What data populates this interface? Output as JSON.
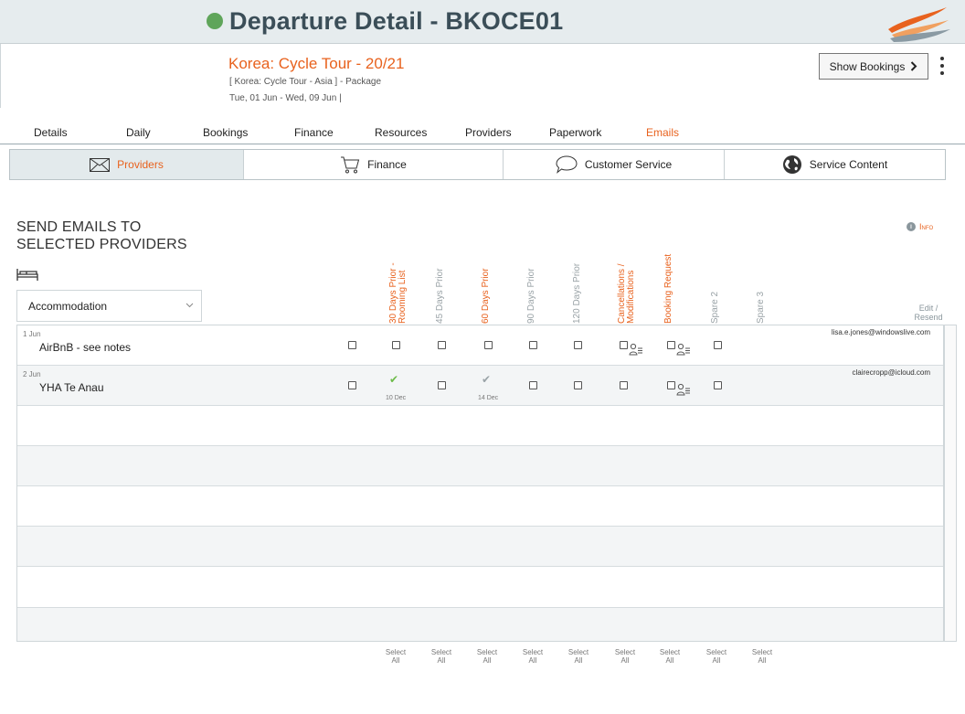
{
  "header": {
    "title": "Departure Detail - BKOCE01",
    "status_color": "#5fa55a",
    "logo": "swoosh-logo"
  },
  "tour": {
    "title": "Korea: Cycle Tour - 20/21",
    "subtitle": "[ Korea: Cycle Tour - Asia ] - Package",
    "dates": "Tue, 01 Jun  - Wed, 09 Jun  |",
    "show_bookings_label": "Show Bookings"
  },
  "tabs": [
    "Details",
    "Daily",
    "Bookings",
    "Finance",
    "Resources",
    "Providers",
    "Paperwork",
    "Emails"
  ],
  "active_tab": "Emails",
  "subtabs": [
    {
      "label": "Providers",
      "icon": "envelope-icon"
    },
    {
      "label": "Finance",
      "icon": "cart-icon"
    },
    {
      "label": "Customer Service",
      "icon": "speech-bubble-icon"
    },
    {
      "label": "Service Content",
      "icon": "globe-icon"
    }
  ],
  "section": {
    "title_line1": "SEND EMAILS TO",
    "title_line2": "SELECTED PROVIDERS",
    "info_label": "Info"
  },
  "filter": {
    "selected": "Accommodation"
  },
  "columns": [
    "30 Days Prior - Rooming List",
    "45 Days Prior",
    "60 Days Prior",
    "90 Days Prior",
    "120 Days Prior",
    "Cancellations / Modifications",
    "Booking Request",
    "Spare 2",
    "Spare 3"
  ],
  "edit_resend": "Edit / Resend",
  "rows": [
    {
      "date": "1 Jun",
      "name": "AirBnB - see notes",
      "email": "lisa.e.jones@windowslive.com",
      "col1_sent": "",
      "col3_sent": ""
    },
    {
      "date": "2 Jun",
      "name": "YHA Te Anau",
      "email": "clairecropp@icloud.com",
      "col1_sent": "10 Dec",
      "col3_sent": "14 Dec"
    }
  ],
  "select_all_line1": "Select",
  "select_all_line2": "All"
}
